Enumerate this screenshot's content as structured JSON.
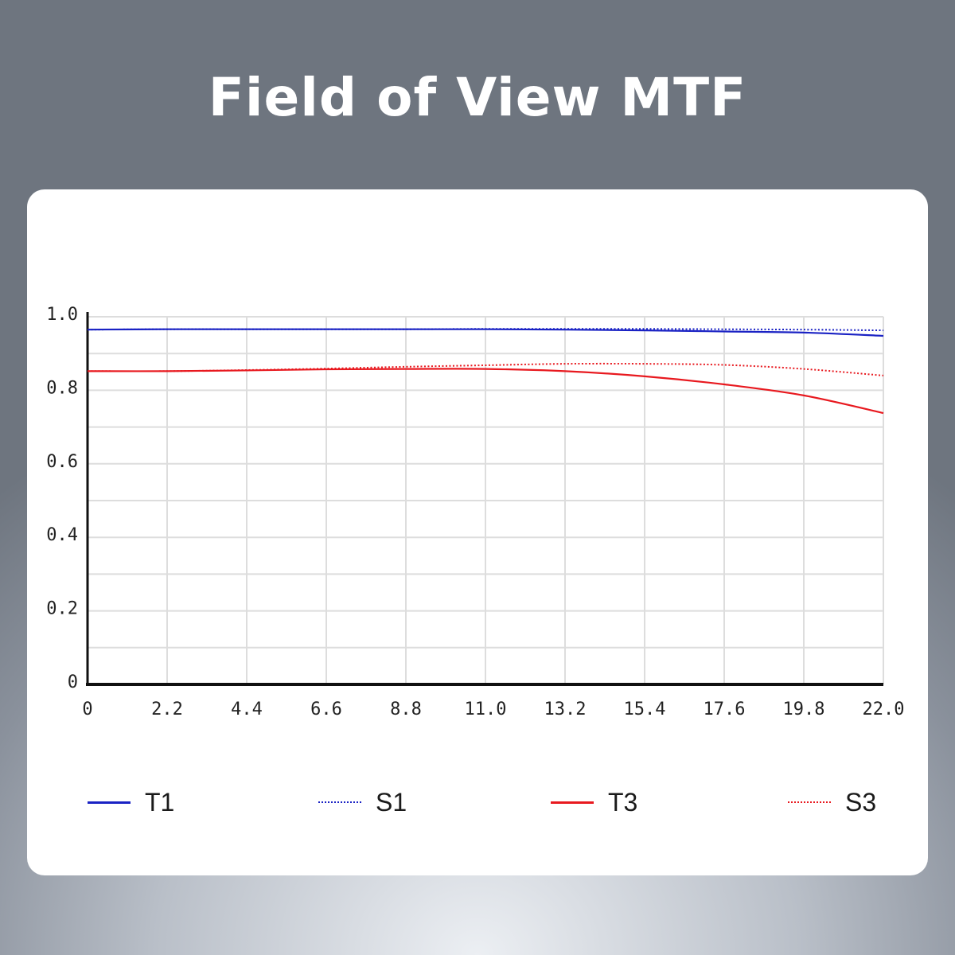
{
  "chart_data": {
    "type": "line",
    "title": "Field of View MTF",
    "xlabel": "",
    "ylabel": "",
    "xlim": [
      0,
      22.0
    ],
    "ylim": [
      0,
      1.0
    ],
    "x_ticks": [
      "0",
      "2.2",
      "4.4",
      "6.6",
      "8.8",
      "11.0",
      "13.2",
      "15.4",
      "17.6",
      "19.8",
      "22.0"
    ],
    "y_ticks": [
      "0",
      "0.2",
      "0.4",
      "0.6",
      "0.8",
      "1.0"
    ],
    "grid": true,
    "legend_position": "bottom",
    "series": [
      {
        "name": "T1",
        "color": "#1a22c4",
        "style": "solid",
        "x": [
          0,
          2.2,
          4.4,
          6.6,
          8.8,
          11.0,
          13.2,
          15.4,
          17.6,
          19.8,
          22.0
        ],
        "y": [
          0.965,
          0.966,
          0.966,
          0.966,
          0.966,
          0.966,
          0.965,
          0.963,
          0.96,
          0.957,
          0.948
        ]
      },
      {
        "name": "S1",
        "color": "#1a22c4",
        "style": "dotted",
        "x": [
          0,
          2.2,
          4.4,
          6.6,
          8.8,
          11.0,
          13.2,
          15.4,
          17.6,
          19.8,
          22.0
        ],
        "y": [
          0.965,
          0.966,
          0.966,
          0.966,
          0.966,
          0.967,
          0.967,
          0.967,
          0.966,
          0.965,
          0.963
        ]
      },
      {
        "name": "T3",
        "color": "#e8191f",
        "style": "solid",
        "x": [
          0,
          2.2,
          4.4,
          6.6,
          8.8,
          11.0,
          13.2,
          15.4,
          17.6,
          19.8,
          22.0
        ],
        "y": [
          0.852,
          0.852,
          0.854,
          0.857,
          0.858,
          0.858,
          0.852,
          0.838,
          0.816,
          0.786,
          0.738
        ]
      },
      {
        "name": "S3",
        "color": "#e8191f",
        "style": "dotted",
        "x": [
          0,
          2.2,
          4.4,
          6.6,
          8.8,
          11.0,
          13.2,
          15.4,
          17.6,
          19.8,
          22.0
        ],
        "y": [
          0.852,
          0.852,
          0.855,
          0.859,
          0.864,
          0.868,
          0.872,
          0.872,
          0.869,
          0.858,
          0.84
        ]
      }
    ]
  }
}
